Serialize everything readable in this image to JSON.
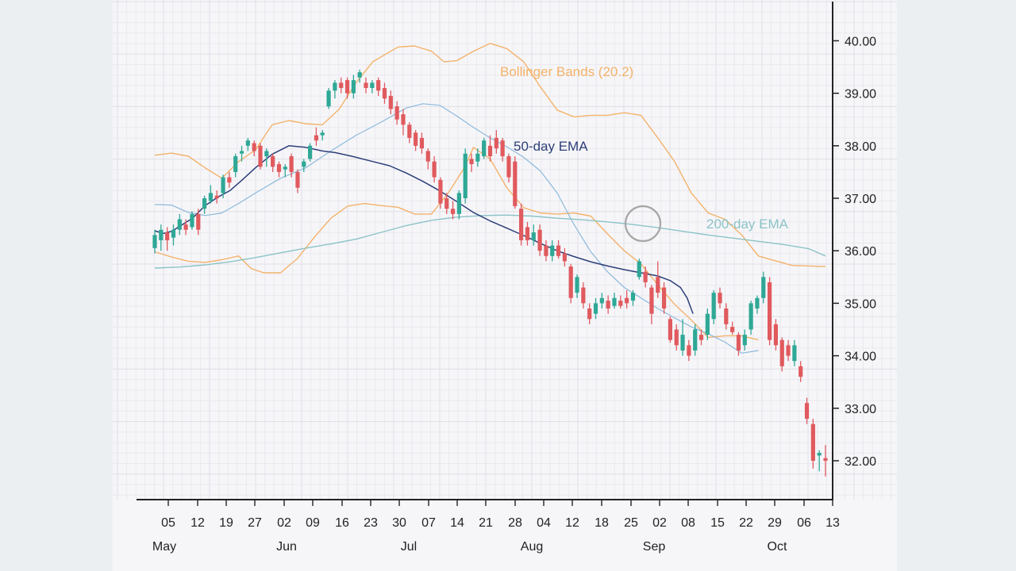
{
  "chart_data": {
    "type": "candlestick",
    "title": "",
    "xlabel": "",
    "ylabel": "",
    "ylim": [
      31.5,
      40.4
    ],
    "y_ticks": [
      "32.00",
      "33.00",
      "34.00",
      "35.00",
      "36.00",
      "37.00",
      "38.00",
      "39.00",
      "40.00"
    ],
    "x_ticks": [
      "05",
      "12",
      "19",
      "27",
      "02",
      "09",
      "16",
      "23",
      "30",
      "07",
      "14",
      "21",
      "28",
      "04",
      "12",
      "18",
      "25",
      "02",
      "08",
      "15",
      "22",
      "29",
      "06",
      "13"
    ],
    "months": [
      "May",
      "Jun",
      "Jul",
      "Aug",
      "Sep",
      "Oct"
    ],
    "grid": true,
    "colors": {
      "up": "#2fa896",
      "down": "#e05a5e",
      "bollinger": "#f4b26a",
      "ema50": "#2d3f78",
      "ema200": "#8cc3c6",
      "bb_mid": "#8db9da",
      "marker": "#a6a6a6"
    },
    "annotations": {
      "bollinger": "Bollinger Bands (20.2)",
      "ema50": "50-day EMA",
      "ema200": "200-day EMA"
    },
    "candles": [
      [
        36.05,
        36.3,
        36.4,
        35.95
      ],
      [
        36.2,
        36.4,
        36.5,
        36.0
      ],
      [
        36.35,
        36.2,
        36.45,
        36.0
      ],
      [
        36.25,
        36.4,
        36.5,
        36.1
      ],
      [
        36.4,
        36.6,
        36.7,
        36.3
      ],
      [
        36.5,
        36.4,
        36.6,
        36.3
      ],
      [
        36.45,
        36.7,
        36.75,
        36.4
      ],
      [
        36.7,
        36.4,
        36.8,
        36.3
      ],
      [
        36.8,
        37.0,
        37.05,
        36.7
      ],
      [
        36.95,
        37.1,
        37.25,
        36.9
      ],
      [
        37.05,
        37.0,
        37.15,
        36.9
      ],
      [
        37.1,
        37.4,
        37.45,
        37.0
      ],
      [
        37.4,
        37.3,
        37.5,
        37.2
      ],
      [
        37.5,
        37.8,
        37.85,
        37.4
      ],
      [
        37.85,
        37.9,
        38.0,
        37.7
      ],
      [
        38.0,
        38.1,
        38.15,
        37.9
      ],
      [
        38.05,
        37.9,
        38.1,
        37.8
      ],
      [
        38.0,
        37.6,
        38.05,
        37.55
      ],
      [
        37.8,
        37.9,
        37.95,
        37.6
      ],
      [
        37.8,
        37.6,
        37.85,
        37.5
      ],
      [
        37.65,
        37.5,
        37.7,
        37.4
      ],
      [
        37.55,
        37.6,
        37.65,
        37.4
      ],
      [
        37.8,
        37.5,
        37.85,
        37.4
      ],
      [
        37.5,
        37.2,
        37.55,
        37.1
      ],
      [
        37.6,
        37.7,
        37.75,
        37.5
      ],
      [
        37.75,
        38.0,
        38.05,
        37.7
      ],
      [
        38.2,
        38.1,
        38.35,
        38.0
      ],
      [
        38.2,
        38.25,
        38.3,
        38.1
      ],
      [
        38.75,
        39.05,
        39.1,
        38.7
      ],
      [
        39.05,
        39.2,
        39.25,
        38.9
      ],
      [
        39.2,
        39.1,
        39.3,
        39.0
      ],
      [
        39.25,
        39.0,
        39.3,
        38.9
      ],
      [
        39.0,
        39.25,
        39.35,
        38.9
      ],
      [
        39.3,
        39.4,
        39.45,
        39.2
      ],
      [
        39.2,
        39.1,
        39.3,
        39.0
      ],
      [
        39.1,
        39.2,
        39.25,
        39.0
      ],
      [
        39.25,
        39.05,
        39.3,
        38.95
      ],
      [
        39.1,
        38.9,
        39.2,
        38.8
      ],
      [
        38.95,
        38.7,
        39.05,
        38.6
      ],
      [
        38.75,
        38.5,
        38.85,
        38.4
      ],
      [
        38.6,
        38.4,
        38.7,
        38.2
      ],
      [
        38.4,
        38.15,
        38.45,
        38.05
      ],
      [
        38.25,
        38.0,
        38.3,
        37.9
      ],
      [
        38.15,
        37.95,
        38.25,
        37.85
      ],
      [
        37.9,
        37.7,
        37.95,
        37.55
      ],
      [
        37.7,
        37.4,
        37.8,
        37.3
      ],
      [
        37.35,
        36.9,
        37.4,
        36.8
      ],
      [
        37.0,
        36.8,
        37.1,
        36.7
      ],
      [
        36.8,
        36.7,
        36.95,
        36.6
      ],
      [
        36.7,
        37.1,
        37.15,
        36.6
      ],
      [
        37.0,
        37.85,
        37.95,
        36.9
      ],
      [
        37.75,
        37.65,
        37.85,
        37.5
      ],
      [
        37.7,
        37.85,
        37.95,
        37.6
      ],
      [
        37.8,
        38.1,
        38.15,
        37.75
      ],
      [
        38.0,
        37.8,
        38.2,
        37.7
      ],
      [
        38.15,
        37.95,
        38.3,
        37.85
      ],
      [
        38.1,
        37.8,
        38.15,
        37.7
      ],
      [
        37.8,
        37.4,
        37.85,
        37.3
      ],
      [
        37.7,
        36.85,
        37.8,
        36.8
      ],
      [
        36.8,
        36.2,
        36.9,
        36.1
      ],
      [
        36.45,
        36.2,
        36.55,
        36.1
      ],
      [
        36.2,
        36.35,
        36.5,
        36.1
      ],
      [
        36.4,
        36.0,
        36.5,
        35.9
      ],
      [
        36.1,
        35.9,
        36.2,
        35.8
      ],
      [
        35.9,
        36.1,
        36.2,
        35.8
      ],
      [
        36.1,
        35.9,
        36.2,
        35.85
      ],
      [
        35.95,
        35.8,
        36.05,
        35.7
      ],
      [
        35.7,
        35.1,
        35.75,
        35.0
      ],
      [
        35.2,
        35.5,
        35.55,
        35.1
      ],
      [
        35.3,
        35.0,
        35.4,
        34.9
      ],
      [
        34.9,
        34.7,
        35.0,
        34.6
      ],
      [
        34.8,
        35.0,
        35.1,
        34.7
      ],
      [
        35.0,
        35.1,
        35.2,
        34.9
      ],
      [
        35.05,
        34.9,
        35.15,
        34.8
      ],
      [
        34.95,
        35.1,
        35.2,
        34.9
      ],
      [
        35.05,
        34.95,
        35.15,
        34.9
      ],
      [
        35.1,
        35.0,
        35.25,
        34.9
      ],
      [
        35.05,
        35.2,
        35.25,
        34.95
      ],
      [
        35.5,
        35.8,
        35.85,
        35.45
      ],
      [
        35.6,
        35.4,
        35.7,
        35.3
      ],
      [
        35.3,
        34.8,
        35.35,
        34.6
      ],
      [
        35.5,
        35.2,
        35.8,
        35.1
      ],
      [
        35.3,
        34.9,
        35.4,
        34.8
      ],
      [
        34.7,
        34.3,
        34.75,
        34.25
      ],
      [
        34.5,
        34.2,
        34.6,
        34.1
      ],
      [
        34.1,
        34.4,
        34.7,
        34.0
      ],
      [
        34.2,
        34.0,
        34.3,
        33.9
      ],
      [
        34.1,
        34.5,
        34.6,
        34.0
      ],
      [
        34.4,
        34.3,
        34.5,
        34.2
      ],
      [
        34.4,
        34.8,
        34.9,
        34.3
      ],
      [
        34.7,
        35.2,
        35.25,
        34.6
      ],
      [
        35.2,
        35.0,
        35.3,
        34.9
      ],
      [
        34.9,
        34.6,
        35.0,
        34.5
      ],
      [
        34.55,
        34.45,
        34.65,
        34.4
      ],
      [
        34.4,
        34.1,
        34.45,
        34.0
      ],
      [
        34.2,
        34.4,
        34.5,
        34.1
      ],
      [
        34.5,
        35.0,
        35.05,
        34.4
      ],
      [
        34.9,
        35.1,
        35.15,
        34.8
      ],
      [
        35.1,
        35.5,
        35.6,
        35.0
      ],
      [
        35.4,
        34.3,
        35.5,
        34.2
      ],
      [
        34.6,
        34.2,
        34.7,
        34.1
      ],
      [
        34.3,
        33.8,
        34.35,
        33.7
      ],
      [
        34.2,
        34.0,
        34.3,
        33.9
      ],
      [
        33.9,
        34.2,
        34.3,
        33.8
      ],
      [
        33.8,
        33.6,
        33.9,
        33.5
      ],
      [
        33.1,
        32.8,
        33.2,
        32.7
      ],
      [
        32.7,
        32.0,
        32.8,
        31.85
      ],
      [
        32.1,
        32.15,
        32.2,
        31.8
      ],
      [
        32.05,
        32.0,
        32.3,
        31.7
      ]
    ],
    "ema50": [
      [
        0,
        36.38
      ],
      [
        10,
        36.33
      ],
      [
        20,
        36.37
      ],
      [
        30,
        36.47
      ],
      [
        45,
        36.62
      ],
      [
        60,
        36.86
      ],
      [
        75,
        37.02
      ],
      [
        90,
        37.15
      ],
      [
        105,
        37.36
      ],
      [
        120,
        37.58
      ],
      [
        140,
        37.84
      ],
      [
        160,
        38.0
      ],
      [
        180,
        37.97
      ],
      [
        200,
        37.9
      ],
      [
        215,
        37.87
      ],
      [
        235,
        37.8
      ],
      [
        260,
        37.7
      ],
      [
        280,
        37.62
      ],
      [
        300,
        37.48
      ],
      [
        320,
        37.32
      ],
      [
        340,
        37.14
      ],
      [
        360,
        36.94
      ],
      [
        380,
        36.73
      ],
      [
        400,
        36.57
      ],
      [
        420,
        36.43
      ],
      [
        440,
        36.29
      ],
      [
        460,
        36.14
      ],
      [
        480,
        36.0
      ],
      [
        500,
        35.89
      ],
      [
        520,
        35.79
      ],
      [
        540,
        35.71
      ],
      [
        560,
        35.64
      ],
      [
        580,
        35.58
      ],
      [
        600,
        35.52
      ],
      [
        615,
        35.43
      ],
      [
        627,
        35.3
      ],
      [
        635,
        35.1
      ],
      [
        642,
        34.8
      ]
    ],
    "ema200": [
      [
        0,
        35.67
      ],
      [
        30,
        35.69
      ],
      [
        60,
        35.73
      ],
      [
        90,
        35.79
      ],
      [
        120,
        35.87
      ],
      [
        150,
        35.96
      ],
      [
        180,
        36.05
      ],
      [
        210,
        36.13
      ],
      [
        240,
        36.22
      ],
      [
        270,
        36.35
      ],
      [
        300,
        36.48
      ],
      [
        330,
        36.58
      ],
      [
        360,
        36.64
      ],
      [
        390,
        36.67
      ],
      [
        420,
        36.68
      ],
      [
        450,
        36.66
      ],
      [
        480,
        36.62
      ],
      [
        510,
        36.59
      ],
      [
        540,
        36.55
      ],
      [
        570,
        36.5
      ],
      [
        600,
        36.44
      ],
      [
        630,
        36.37
      ],
      [
        660,
        36.3
      ],
      [
        690,
        36.24
      ],
      [
        720,
        36.18
      ],
      [
        750,
        36.12
      ],
      [
        780,
        36.04
      ],
      [
        800,
        35.9
      ]
    ],
    "bb_mid": [
      [
        0,
        36.88
      ],
      [
        20,
        36.87
      ],
      [
        40,
        36.73
      ],
      [
        60,
        36.67
      ],
      [
        80,
        36.72
      ],
      [
        100,
        36.9
      ],
      [
        120,
        37.1
      ],
      [
        150,
        37.38
      ],
      [
        180,
        37.58
      ],
      [
        210,
        37.9
      ],
      [
        240,
        38.2
      ],
      [
        270,
        38.45
      ],
      [
        300,
        38.72
      ],
      [
        320,
        38.8
      ],
      [
        340,
        38.77
      ],
      [
        360,
        38.57
      ],
      [
        380,
        38.35
      ],
      [
        400,
        38.15
      ],
      [
        420,
        37.98
      ],
      [
        440,
        37.78
      ],
      [
        460,
        37.52
      ],
      [
        480,
        37.1
      ],
      [
        500,
        36.5
      ],
      [
        520,
        35.98
      ],
      [
        540,
        35.6
      ],
      [
        560,
        35.3
      ],
      [
        580,
        35.1
      ],
      [
        600,
        34.9
      ],
      [
        620,
        34.72
      ],
      [
        640,
        34.55
      ],
      [
        660,
        34.42
      ],
      [
        680,
        34.26
      ],
      [
        700,
        34.05
      ],
      [
        720,
        34.1
      ]
    ],
    "bb_upper": [
      [
        0,
        37.82
      ],
      [
        20,
        37.86
      ],
      [
        40,
        37.8
      ],
      [
        60,
        37.58
      ],
      [
        80,
        37.38
      ],
      [
        100,
        37.7
      ],
      [
        120,
        37.92
      ],
      [
        140,
        38.4
      ],
      [
        160,
        38.48
      ],
      [
        180,
        38.42
      ],
      [
        200,
        38.4
      ],
      [
        220,
        38.7
      ],
      [
        240,
        39.2
      ],
      [
        260,
        39.6
      ],
      [
        290,
        39.88
      ],
      [
        310,
        39.9
      ],
      [
        330,
        39.8
      ],
      [
        345,
        39.6
      ],
      [
        360,
        39.62
      ],
      [
        380,
        39.8
      ],
      [
        400,
        39.95
      ],
      [
        420,
        39.85
      ],
      [
        440,
        39.6
      ],
      [
        460,
        39.12
      ],
      [
        480,
        38.68
      ],
      [
        500,
        38.55
      ],
      [
        520,
        38.58
      ],
      [
        540,
        38.58
      ],
      [
        560,
        38.63
      ],
      [
        580,
        38.58
      ],
      [
        600,
        38.15
      ],
      [
        620,
        37.7
      ],
      [
        640,
        37.1
      ],
      [
        660,
        36.72
      ],
      [
        680,
        36.6
      ],
      [
        700,
        36.3
      ],
      [
        720,
        35.9
      ],
      [
        760,
        35.72
      ],
      [
        800,
        35.7
      ]
    ],
    "bb_lower": [
      [
        0,
        35.98
      ],
      [
        20,
        35.88
      ],
      [
        40,
        35.8
      ],
      [
        60,
        35.78
      ],
      [
        80,
        35.83
      ],
      [
        100,
        35.9
      ],
      [
        115,
        35.66
      ],
      [
        130,
        35.58
      ],
      [
        150,
        35.58
      ],
      [
        170,
        35.85
      ],
      [
        190,
        36.25
      ],
      [
        210,
        36.62
      ],
      [
        230,
        36.85
      ],
      [
        250,
        36.9
      ],
      [
        270,
        36.86
      ],
      [
        290,
        36.83
      ],
      [
        310,
        36.7
      ],
      [
        330,
        36.7
      ],
      [
        350,
        37.1
      ],
      [
        370,
        37.6
      ],
      [
        380,
        37.97
      ],
      [
        400,
        37.75
      ],
      [
        420,
        37.2
      ],
      [
        440,
        36.82
      ],
      [
        460,
        36.72
      ],
      [
        480,
        36.7
      ],
      [
        500,
        36.72
      ],
      [
        520,
        36.66
      ],
      [
        540,
        36.32
      ],
      [
        560,
        36.0
      ],
      [
        580,
        35.75
      ],
      [
        600,
        35.35
      ],
      [
        620,
        34.98
      ],
      [
        640,
        34.68
      ],
      [
        660,
        34.35
      ],
      [
        680,
        34.38
      ],
      [
        700,
        34.38
      ],
      [
        720,
        34.3
      ]
    ]
  }
}
